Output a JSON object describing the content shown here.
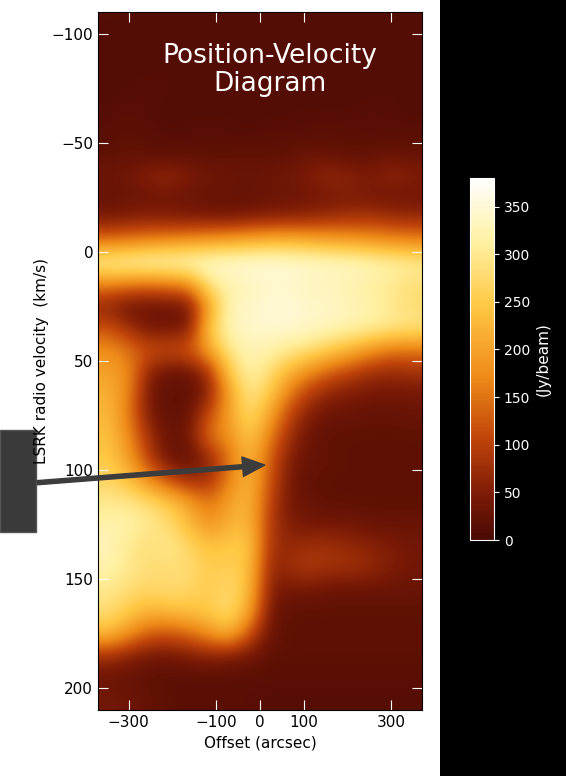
{
  "chart_data": {
    "type": "heatmap",
    "title": "Position-Velocity\nDiagram",
    "x_label": "Offset (arcsec)",
    "y_label": "LSRK radio velocity  (km/s)",
    "xlim": [
      -370,
      370
    ],
    "xticks": [
      {
        "value": -300,
        "label": "−300"
      },
      {
        "value": -100,
        "label": "−100"
      },
      0,
      100,
      300
    ],
    "ylim": [
      210,
      -110
    ],
    "yticks": [
      {
        "value": -100,
        "label": "−100"
      },
      {
        "value": -50,
        "label": "−50"
      },
      0,
      50,
      100,
      150,
      200
    ],
    "colorbar_label": "(Jy/beam)",
    "colorbar_lim": [
      0,
      380
    ],
    "colorbar_ticks": [
      0,
      50,
      100,
      150,
      200,
      250,
      300,
      350
    ],
    "cells": [
      [
        12,
        12,
        10,
        10,
        12,
        10,
        10,
        12,
        10,
        10,
        12,
        10,
        10,
        12,
        12,
        10
      ],
      [
        10,
        12,
        12,
        10,
        10,
        12,
        10,
        10,
        12,
        10,
        10,
        12,
        10,
        10,
        12,
        12
      ],
      [
        12,
        10,
        10,
        12,
        12,
        10,
        12,
        10,
        10,
        12,
        12,
        10,
        12,
        12,
        10,
        10
      ],
      [
        10,
        12,
        15,
        12,
        10,
        12,
        10,
        12,
        12,
        10,
        10,
        12,
        10,
        10,
        12,
        12
      ],
      [
        12,
        15,
        12,
        10,
        12,
        10,
        12,
        10,
        10,
        12,
        12,
        10,
        12,
        15,
        12,
        10
      ],
      [
        15,
        18,
        15,
        12,
        12,
        15,
        12,
        12,
        15,
        12,
        15,
        18,
        15,
        12,
        15,
        15
      ],
      [
        20,
        25,
        20,
        18,
        20,
        18,
        20,
        22,
        20,
        25,
        30,
        25,
        20,
        25,
        30,
        25
      ],
      [
        35,
        40,
        60,
        70,
        50,
        40,
        35,
        30,
        35,
        40,
        55,
        70,
        60,
        50,
        65,
        55
      ],
      [
        25,
        30,
        30,
        35,
        30,
        25,
        25,
        25,
        30,
        30,
        35,
        40,
        45,
        40,
        35,
        35
      ],
      [
        50,
        55,
        60,
        55,
        50,
        50,
        45,
        55,
        60,
        65,
        70,
        80,
        85,
        90,
        80,
        75
      ],
      [
        150,
        160,
        170,
        180,
        190,
        200,
        210,
        220,
        230,
        230,
        220,
        210,
        200,
        190,
        180,
        170
      ],
      [
        320,
        330,
        340,
        340,
        345,
        350,
        350,
        355,
        355,
        350,
        345,
        340,
        340,
        330,
        320,
        310
      ],
      [
        160,
        150,
        140,
        150,
        170,
        290,
        320,
        330,
        340,
        340,
        330,
        330,
        320,
        310,
        300,
        280
      ],
      [
        60,
        30,
        30,
        30,
        35,
        200,
        330,
        340,
        350,
        350,
        340,
        340,
        330,
        320,
        300,
        280
      ],
      [
        120,
        80,
        40,
        40,
        45,
        250,
        330,
        340,
        345,
        345,
        340,
        330,
        320,
        310,
        300,
        290
      ],
      [
        180,
        150,
        120,
        120,
        130,
        200,
        300,
        330,
        320,
        300,
        280,
        250,
        220,
        180,
        150,
        150
      ],
      [
        200,
        180,
        60,
        30,
        30,
        80,
        250,
        320,
        280,
        220,
        170,
        130,
        100,
        80,
        70,
        80
      ],
      [
        220,
        170,
        40,
        20,
        20,
        60,
        200,
        300,
        250,
        150,
        90,
        60,
        50,
        40,
        40,
        40
      ],
      [
        230,
        160,
        50,
        20,
        30,
        120,
        200,
        280,
        200,
        100,
        50,
        30,
        30,
        25,
        25,
        30
      ],
      [
        240,
        180,
        80,
        30,
        40,
        150,
        180,
        250,
        160,
        70,
        30,
        20,
        20,
        20,
        20,
        20
      ],
      [
        250,
        200,
        100,
        30,
        20,
        60,
        150,
        230,
        130,
        50,
        30,
        25,
        20,
        20,
        20,
        20
      ],
      [
        270,
        240,
        180,
        120,
        80,
        80,
        170,
        230,
        120,
        40,
        20,
        20,
        20,
        20,
        20,
        20
      ],
      [
        300,
        300,
        280,
        250,
        200,
        150,
        200,
        230,
        100,
        40,
        30,
        20,
        20,
        20,
        20,
        20
      ],
      [
        320,
        320,
        300,
        280,
        230,
        180,
        220,
        230,
        90,
        50,
        40,
        40,
        40,
        30,
        30,
        30
      ],
      [
        330,
        300,
        280,
        300,
        270,
        240,
        250,
        250,
        80,
        70,
        80,
        80,
        70,
        60,
        50,
        40
      ],
      [
        320,
        300,
        280,
        280,
        280,
        250,
        260,
        240,
        60,
        80,
        90,
        80,
        80,
        70,
        50,
        40
      ],
      [
        300,
        280,
        270,
        280,
        270,
        250,
        280,
        230,
        50,
        40,
        40,
        30,
        30,
        30,
        30,
        30
      ],
      [
        280,
        250,
        220,
        230,
        240,
        250,
        280,
        200,
        40,
        20,
        20,
        20,
        20,
        20,
        20,
        20
      ],
      [
        230,
        180,
        130,
        120,
        140,
        180,
        220,
        120,
        30,
        20,
        20,
        20,
        20,
        20,
        20,
        20
      ],
      [
        80,
        60,
        40,
        40,
        50,
        60,
        50,
        40,
        20,
        20,
        20,
        20,
        20,
        20,
        20,
        20
      ],
      [
        30,
        25,
        20,
        15,
        15,
        15,
        15,
        15,
        15,
        15,
        15,
        15,
        15,
        15,
        15,
        15
      ],
      [
        40,
        35,
        25,
        20,
        15,
        15,
        15,
        15,
        12,
        12,
        12,
        12,
        12,
        12,
        12,
        12
      ]
    ]
  }
}
